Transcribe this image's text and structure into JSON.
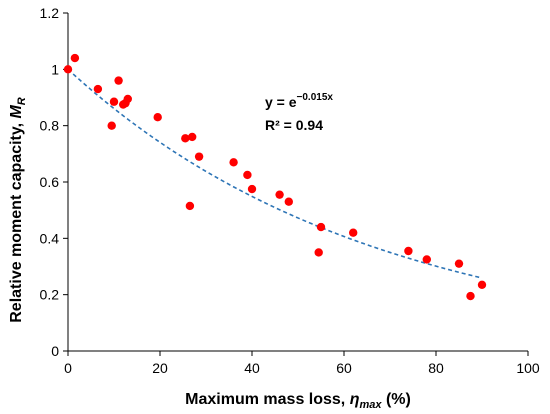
{
  "chart_data": {
    "type": "scatter",
    "xlabel": {
      "main": "Maximum mass loss, ",
      "symbol": "η",
      "sub": "max",
      "unit": " (%)"
    },
    "ylabel": {
      "main": "Relative moment capacity, ",
      "symbol": "M",
      "sub": "R"
    },
    "xlim": [
      0,
      100
    ],
    "ylim": [
      0,
      1.2
    ],
    "xticks": [
      0,
      20,
      40,
      60,
      80,
      100
    ],
    "yticks": [
      0,
      0.2,
      0.4,
      0.6,
      0.8,
      1,
      1.2
    ],
    "ytick_labels": [
      "0",
      "0.2",
      "0.4",
      "0.6",
      "0.8",
      "1",
      "1.2"
    ],
    "grid": false,
    "marker_color": "#ff0000",
    "trend_color": "#2e75b6",
    "points": [
      {
        "x": 0,
        "y": 1.0
      },
      {
        "x": 1.5,
        "y": 1.04
      },
      {
        "x": 6.5,
        "y": 0.93
      },
      {
        "x": 9.5,
        "y": 0.8
      },
      {
        "x": 10,
        "y": 0.885
      },
      {
        "x": 11,
        "y": 0.96
      },
      {
        "x": 12,
        "y": 0.875
      },
      {
        "x": 12.5,
        "y": 0.88
      },
      {
        "x": 13,
        "y": 0.895
      },
      {
        "x": 19.5,
        "y": 0.83
      },
      {
        "x": 25.5,
        "y": 0.755
      },
      {
        "x": 26.5,
        "y": 0.515
      },
      {
        "x": 27,
        "y": 0.76
      },
      {
        "x": 28.5,
        "y": 0.69
      },
      {
        "x": 36,
        "y": 0.67
      },
      {
        "x": 39,
        "y": 0.625
      },
      {
        "x": 40,
        "y": 0.575
      },
      {
        "x": 46,
        "y": 0.555
      },
      {
        "x": 48,
        "y": 0.53
      },
      {
        "x": 54.5,
        "y": 0.35
      },
      {
        "x": 55,
        "y": 0.44
      },
      {
        "x": 62,
        "y": 0.42
      },
      {
        "x": 74,
        "y": 0.355
      },
      {
        "x": 78,
        "y": 0.325
      },
      {
        "x": 85,
        "y": 0.31
      },
      {
        "x": 87.5,
        "y": 0.195
      },
      {
        "x": 90,
        "y": 0.235
      }
    ],
    "trendline": {
      "type": "exponential",
      "coefficient": -0.015,
      "x_range": [
        0,
        90
      ]
    },
    "annotations": {
      "equation": {
        "base": "y = e",
        "exponent": "−0.015x"
      },
      "r_squared": "R² = 0.94"
    }
  }
}
